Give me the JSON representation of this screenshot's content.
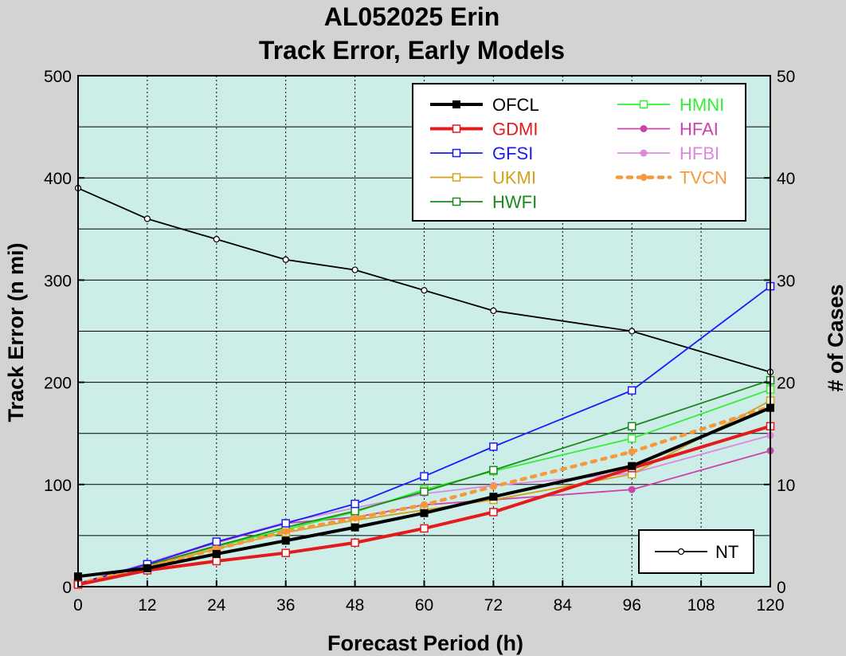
{
  "chart_data": {
    "type": "line",
    "title": "AL052025 Erin",
    "subtitle": "Track Error, Early Models",
    "xlabel": "Forecast Period (h)",
    "ylabel": "Track Error (n mi)",
    "y2label": "# of Cases",
    "xlim": [
      0,
      120
    ],
    "ylim": [
      0,
      500
    ],
    "y2lim": [
      0,
      50
    ],
    "xticks": [
      "0",
      "12",
      "24",
      "36",
      "48",
      "60",
      "72",
      "84",
      "96",
      "108",
      "120"
    ],
    "yticks": [
      "0",
      "100",
      "200",
      "300",
      "400",
      "500"
    ],
    "y2ticks": [
      "0",
      "10",
      "20",
      "30",
      "40",
      "50"
    ],
    "grid": true,
    "plot_background": "#cdeee8",
    "legend_position": "top-right",
    "series": [
      {
        "name": "OFCL",
        "color": "#000000",
        "style": "solid-thick",
        "marker": "filled-square",
        "x": [
          0,
          12,
          24,
          36,
          48,
          60,
          72,
          96,
          120
        ],
        "values": [
          10,
          18,
          32,
          45,
          58,
          72,
          88,
          118,
          175
        ]
      },
      {
        "name": "GDMI",
        "color": "#e41a1c",
        "style": "solid-thick",
        "marker": "open-square",
        "x": [
          0,
          12,
          24,
          36,
          48,
          60,
          72,
          96,
          120
        ],
        "values": [
          2,
          16,
          25,
          33,
          43,
          57,
          73,
          116,
          157
        ]
      },
      {
        "name": "GFSI",
        "color": "#1a1aff",
        "style": "solid",
        "marker": "open-square",
        "x": [
          0,
          12,
          24,
          36,
          48,
          60,
          72,
          96,
          120
        ],
        "values": [
          3,
          22,
          44,
          62,
          81,
          108,
          137,
          192,
          294
        ]
      },
      {
        "name": "UKMI",
        "color": "#d4a017",
        "style": "solid",
        "marker": "open-square",
        "x": [
          0,
          12,
          24,
          36,
          48,
          60,
          72,
          96,
          120
        ],
        "values": [
          3,
          20,
          37,
          53,
          65,
          75,
          85,
          110,
          182
        ]
      },
      {
        "name": "HWFI",
        "color": "#1a8a1a",
        "style": "solid",
        "marker": "open-square",
        "x": [
          0,
          12,
          24,
          36,
          48,
          60,
          72,
          96,
          120
        ],
        "values": [
          3,
          21,
          40,
          58,
          74,
          93,
          114,
          157,
          202
        ]
      },
      {
        "name": "HMNI",
        "color": "#33ee33",
        "style": "solid",
        "marker": "open-square",
        "x": [
          0,
          12,
          24,
          36,
          48,
          60,
          72,
          96,
          120
        ],
        "values": [
          3,
          21,
          39,
          56,
          73,
          95,
          113,
          145,
          193
        ]
      },
      {
        "name": "HFAI",
        "color": "#cc44aa",
        "style": "solid",
        "marker": "filled-circle",
        "x": [
          0,
          12,
          24,
          36,
          48,
          60,
          72,
          96,
          120
        ],
        "values": [
          3,
          22,
          43,
          62,
          68,
          80,
          85,
          95,
          133
        ]
      },
      {
        "name": "HFBI",
        "color": "#dd88dd",
        "style": "solid",
        "marker": "filled-circle",
        "x": [
          0,
          12,
          24,
          36,
          48,
          60,
          72,
          96,
          120
        ],
        "values": [
          3,
          23,
          44,
          63,
          77,
          91,
          99,
          111,
          148
        ]
      },
      {
        "name": "TVCN",
        "color": "#f59a3c",
        "style": "dotted-thick",
        "marker": "filled-circle",
        "x": [
          0,
          12,
          24,
          36,
          48,
          60,
          72,
          96,
          120
        ],
        "values": [
          3,
          19,
          37,
          54,
          67,
          80,
          98,
          132,
          176
        ]
      }
    ],
    "secondary_series": [
      {
        "name": "NT",
        "color": "#000000",
        "style": "solid",
        "marker": "open-circle",
        "axis": "y2",
        "x": [
          0,
          12,
          24,
          36,
          48,
          60,
          72,
          96,
          120
        ],
        "values": [
          39,
          36,
          34,
          32,
          31,
          29,
          27,
          25,
          21
        ]
      }
    ]
  }
}
